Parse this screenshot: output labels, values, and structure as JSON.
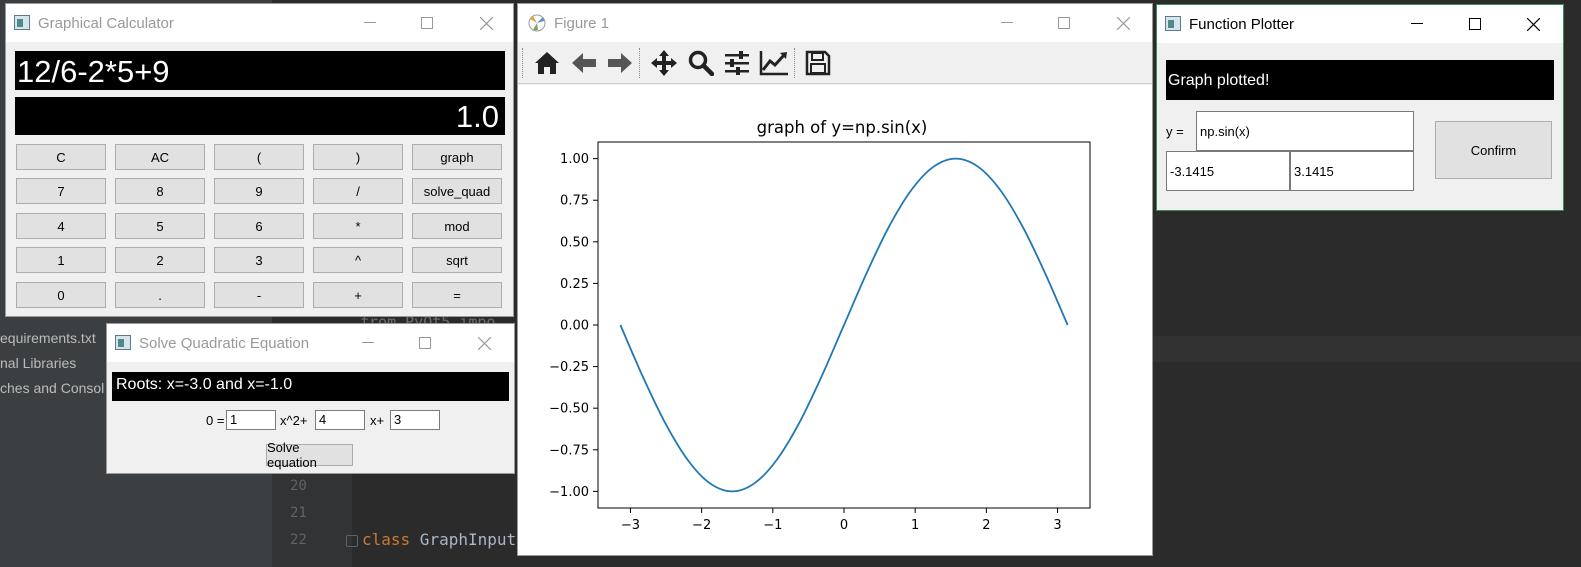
{
  "ide": {
    "project_items": [
      "equirements.txt",
      "nal Libraries",
      "ches and Consol"
    ],
    "line_numbers": [
      "20",
      "21",
      "22"
    ],
    "code_keyword": "class",
    "code_rest": " GraphInput",
    "partial_code": "from PyQt5 impo"
  },
  "calculator": {
    "title": "Graphical Calculator",
    "expression": "12/6-2*5+9",
    "result": "1.0",
    "buttons": [
      [
        "C",
        "AC",
        "(",
        ")",
        "graph"
      ],
      [
        "7",
        "8",
        "9",
        "/",
        "solve_quad"
      ],
      [
        "4",
        "5",
        "6",
        "*",
        "mod"
      ],
      [
        "1",
        "2",
        "3",
        "^",
        "sqrt"
      ],
      [
        "0",
        ".",
        "-",
        "+",
        "="
      ]
    ]
  },
  "quadratic": {
    "title": "Solve Quadratic Equation",
    "result": "Roots: x=-3.0 and x=-1.0",
    "prefix": "0 =",
    "a_value": "1",
    "x2_label": "x^2+",
    "b_value": "4",
    "x_label": "x+",
    "c_value": "3",
    "solve_label": "Solve equation"
  },
  "figure": {
    "title": "Figure 1",
    "toolbar": [
      "home-icon",
      "back-icon",
      "forward-icon",
      "pan-icon",
      "zoom-icon",
      "configure-subplots-icon",
      "edit-axis-icon",
      "save-icon"
    ]
  },
  "plotter": {
    "title": "Function Plotter",
    "status": "Graph plotted!",
    "y_label": "y =",
    "function_value": "np.sin(x)",
    "min_value": "-3.1415",
    "max_value": "3.1415",
    "confirm_label": "Confirm"
  },
  "chart_data": {
    "type": "line",
    "title": "graph of y=np.sin(x)",
    "xlabel": "",
    "ylabel": "",
    "x_range": [
      -3.1415,
      3.1415
    ],
    "xlim": [
      -3.456,
      3.456
    ],
    "ylim": [
      -1.1,
      1.1
    ],
    "xticks": [
      -3,
      -2,
      -1,
      0,
      1,
      2,
      3
    ],
    "xtick_labels": [
      "−3",
      "−2",
      "−1",
      "0",
      "1",
      "2",
      "3"
    ],
    "yticks": [
      1.0,
      0.75,
      0.5,
      0.25,
      0.0,
      -0.25,
      -0.5,
      -0.75,
      -1.0
    ],
    "ytick_labels": [
      "1.00",
      "0.75",
      "0.50",
      "0.25",
      "0.00",
      "−0.25",
      "−0.50",
      "−0.75",
      "−1.00"
    ],
    "series": [
      {
        "color": "#1f77b4",
        "x": [
          -3.1415,
          -2.8274,
          -2.5133,
          -2.1991,
          -1.885,
          -1.5708,
          -1.2566,
          -0.9425,
          -0.6283,
          -0.3142,
          0.0,
          0.3142,
          0.6283,
          0.9425,
          1.2566,
          1.5708,
          1.885,
          2.1991,
          2.5133,
          2.8274,
          3.1415
        ],
        "y": [
          -0.0001,
          -0.309,
          -0.5878,
          -0.809,
          -0.9511,
          -1.0,
          -0.9511,
          -0.809,
          -0.5878,
          -0.309,
          0.0,
          0.309,
          0.5878,
          0.809,
          0.9511,
          1.0,
          0.9511,
          0.809,
          0.5878,
          0.309,
          0.0001
        ]
      }
    ],
    "grid": false
  }
}
